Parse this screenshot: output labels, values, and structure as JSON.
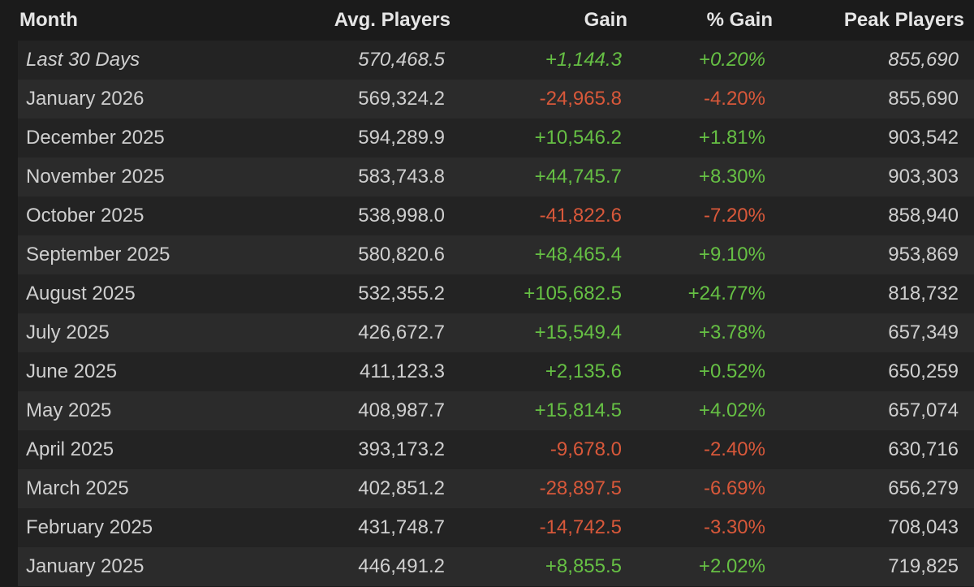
{
  "table": {
    "headers": [
      "Month",
      "Avg. Players",
      "Gain",
      "% Gain",
      "Peak Players"
    ],
    "rows": [
      [
        "Last 30 Days",
        "570,468.5",
        "+1,144.3",
        "+0.20%",
        "855,690"
      ],
      [
        "January 2026",
        "569,324.2",
        "-24,965.8",
        "-4.20%",
        "855,690"
      ],
      [
        "December 2025",
        "594,289.9",
        "+10,546.2",
        "+1.81%",
        "903,542"
      ],
      [
        "November 2025",
        "583,743.8",
        "+44,745.7",
        "+8.30%",
        "903,303"
      ],
      [
        "October 2025",
        "538,998.0",
        "-41,822.6",
        "-7.20%",
        "858,940"
      ],
      [
        "September 2025",
        "580,820.6",
        "+48,465.4",
        "+9.10%",
        "953,869"
      ],
      [
        "August 2025",
        "532,355.2",
        "+105,682.5",
        "+24.77%",
        "818,732"
      ],
      [
        "July 2025",
        "426,672.7",
        "+15,549.4",
        "+3.78%",
        "657,349"
      ],
      [
        "June 2025",
        "411,123.3",
        "+2,135.6",
        "+0.52%",
        "650,259"
      ],
      [
        "May 2025",
        "408,987.7",
        "+15,814.5",
        "+4.02%",
        "657,074"
      ],
      [
        "April 2025",
        "393,173.2",
        "-9,678.0",
        "-2.40%",
        "630,716"
      ],
      [
        "March 2025",
        "402,851.2",
        "-28,897.5",
        "-6.69%",
        "656,279"
      ],
      [
        "February 2025",
        "431,748.7",
        "-14,742.5",
        "-3.30%",
        "708,043"
      ],
      [
        "January 2025",
        "446,491.2",
        "+8,855.5",
        "+2.02%",
        "719,825"
      ]
    ]
  }
}
